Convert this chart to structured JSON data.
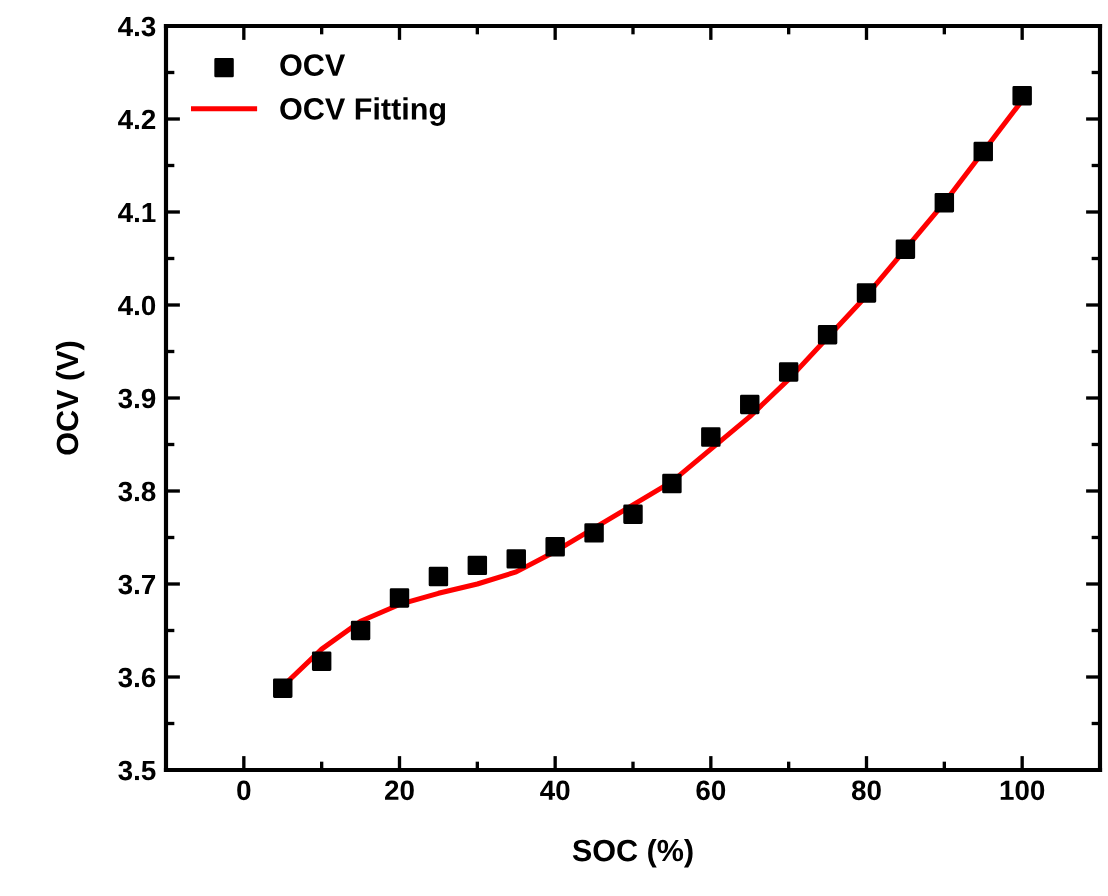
{
  "chart_data": {
    "type": "scatter",
    "xlabel": "SOC (%)",
    "ylabel": "OCV (V)",
    "x": [
      5,
      10,
      15,
      20,
      25,
      30,
      35,
      40,
      45,
      50,
      55,
      60,
      65,
      70,
      75,
      80,
      85,
      90,
      95,
      100
    ],
    "series": [
      {
        "name": "OCV",
        "color": "#000000",
        "marker": "square",
        "values": [
          3.588,
          3.617,
          3.65,
          3.685,
          3.708,
          3.72,
          3.727,
          3.74,
          3.755,
          3.775,
          3.808,
          3.858,
          3.893,
          3.928,
          3.968,
          4.013,
          4.06,
          4.11,
          4.165,
          4.225
        ]
      },
      {
        "name": "OCV Fitting",
        "type": "line",
        "color": "#ff0000",
        "marker": "none",
        "line_style": "solid",
        "values": [
          3.59,
          3.63,
          3.66,
          3.678,
          3.69,
          3.7,
          3.713,
          3.735,
          3.76,
          3.785,
          3.81,
          3.845,
          3.88,
          3.92,
          3.965,
          4.01,
          4.06,
          4.11,
          4.165,
          4.22
        ]
      }
    ],
    "xlim": [
      -10,
      110
    ],
    "xticks": [
      0,
      20,
      40,
      60,
      80,
      100
    ],
    "ylim": [
      3.5,
      4.3
    ],
    "yticks": [
      {
        "value": 3.5,
        "label": "3.5"
      },
      {
        "value": 3.6,
        "label": "3.6"
      },
      {
        "value": 3.7,
        "label": "3.7"
      },
      {
        "value": 3.8,
        "label": "3.8"
      },
      {
        "value": 3.9,
        "label": "3.9"
      },
      {
        "value": 4.0,
        "label": "4.0"
      },
      {
        "value": 4.1,
        "label": "4.1"
      },
      {
        "value": 4.2,
        "label": "4.2"
      },
      {
        "value": 4.3,
        "label": "4.3"
      }
    ],
    "grid": false,
    "legend": "top left"
  }
}
